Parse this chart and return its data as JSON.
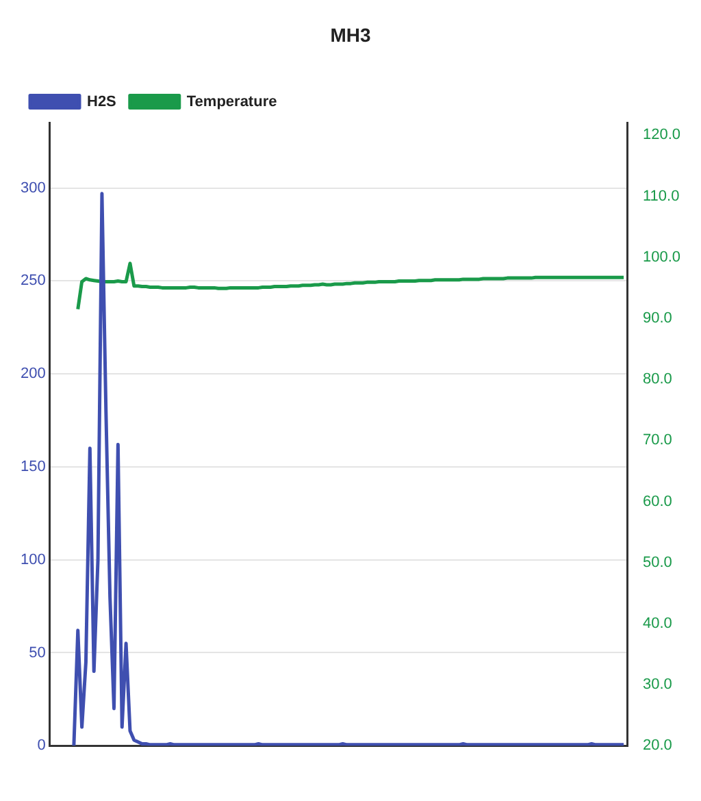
{
  "chart_data": {
    "type": "line",
    "title": "MH3",
    "categories": [
      null,
      null,
      null,
      null,
      null,
      null,
      null,
      null,
      null,
      null,
      null,
      null,
      null,
      null,
      null,
      null,
      null,
      null,
      null,
      null,
      null,
      null,
      null,
      null,
      null,
      null,
      null,
      null,
      null,
      null,
      null,
      null,
      null,
      null,
      null,
      null,
      null,
      null,
      null,
      null,
      null,
      null,
      null,
      null,
      null,
      null,
      null,
      null,
      null,
      null,
      null,
      null,
      null,
      null,
      null,
      null,
      null,
      null,
      null,
      null,
      null,
      null,
      null,
      null,
      null,
      null,
      null,
      null,
      null,
      null,
      null,
      null,
      null,
      null,
      null,
      null,
      null,
      null,
      null,
      null,
      null,
      null,
      null,
      null,
      null,
      null,
      null,
      null,
      null,
      null,
      null,
      null,
      null,
      null,
      null,
      null,
      null,
      null,
      null,
      null,
      null,
      null,
      null,
      null,
      null,
      null,
      null,
      null,
      null,
      null,
      null,
      null,
      null,
      null,
      null,
      null,
      null,
      null,
      null,
      null,
      null,
      null,
      null,
      null,
      null,
      null,
      null,
      null,
      null,
      null,
      null,
      null,
      null,
      null,
      null,
      null,
      null,
      null,
      null,
      null,
      null,
      null,
      null,
      null,
      null
    ],
    "series": [
      {
        "name": "H2S",
        "color": "#3f4fb0",
        "type": "line",
        "axis": "y",
        "values": [
          null,
          null,
          null,
          null,
          null,
          null,
          0,
          62,
          10,
          45,
          160,
          40,
          100,
          297,
          180,
          80,
          20,
          162,
          10,
          55,
          8,
          3,
          2,
          1,
          1,
          0.5,
          0.5,
          0.5,
          0.5,
          0.5,
          1,
          0.5,
          0.5,
          0.5,
          0.5,
          0.5,
          0.5,
          0.5,
          0.5,
          0.5,
          0.5,
          0.5,
          0.5,
          0.5,
          0.5,
          0.5,
          0.5,
          0.5,
          0.5,
          0.5,
          0.5,
          0.5,
          1,
          0.5,
          0.5,
          0.5,
          0.5,
          0.5,
          0.5,
          0.5,
          0.5,
          0.5,
          0.5,
          0.5,
          0.5,
          0.5,
          0.5,
          0.5,
          0.5,
          0.5,
          0.5,
          0.5,
          0.5,
          1,
          0.5,
          0.5,
          0.5,
          0.5,
          0.5,
          0.5,
          0.5,
          0.5,
          0.5,
          0.5,
          0.5,
          0.5,
          0.5,
          0.5,
          0.5,
          0.5,
          0.5,
          0.5,
          0.5,
          0.5,
          0.5,
          0.5,
          0.5,
          0.5,
          0.5,
          0.5,
          0.5,
          0.5,
          0.5,
          1,
          0.5,
          0.5,
          0.5,
          0.5,
          0.5,
          0.5,
          0.5,
          0.5,
          0.5,
          0.5,
          0.5,
          0.5,
          0.5,
          0.5,
          0.5,
          0.5,
          0.5,
          0.5,
          0.5,
          0.5,
          0.5,
          0.5,
          0.5,
          0.5,
          0.5,
          0.5,
          0.5,
          0.5,
          0.5,
          0.5,
          0.5,
          1,
          0.5,
          0.5,
          0.5,
          0.5,
          0.5,
          0.5,
          0.5,
          0.5,
          null
        ]
      },
      {
        "name": "Temperature",
        "color": "#1a9a4a",
        "type": "line",
        "axis": "y2",
        "values": [
          null,
          null,
          null,
          null,
          null,
          null,
          null,
          91.5,
          96,
          96.5,
          96.3,
          96.2,
          96.1,
          96,
          96,
          96,
          96,
          96.1,
          96,
          96,
          99,
          95.3,
          95.3,
          95.2,
          95.2,
          95.1,
          95.1,
          95.1,
          95,
          95,
          95,
          95,
          95,
          95,
          95,
          95.1,
          95.1,
          95,
          95,
          95,
          95,
          95,
          94.9,
          94.9,
          94.9,
          95,
          95,
          95,
          95,
          95,
          95,
          95,
          95,
          95.1,
          95.1,
          95.1,
          95.2,
          95.2,
          95.2,
          95.2,
          95.3,
          95.3,
          95.3,
          95.4,
          95.4,
          95.4,
          95.5,
          95.5,
          95.6,
          95.5,
          95.5,
          95.6,
          95.6,
          95.6,
          95.7,
          95.7,
          95.8,
          95.8,
          95.8,
          95.9,
          95.9,
          95.9,
          96,
          96,
          96,
          96,
          96,
          96.1,
          96.1,
          96.1,
          96.1,
          96.1,
          96.2,
          96.2,
          96.2,
          96.2,
          96.3,
          96.3,
          96.3,
          96.3,
          96.3,
          96.3,
          96.3,
          96.4,
          96.4,
          96.4,
          96.4,
          96.4,
          96.5,
          96.5,
          96.5,
          96.5,
          96.5,
          96.5,
          96.6,
          96.6,
          96.6,
          96.6,
          96.6,
          96.6,
          96.6,
          96.7,
          96.7,
          96.7,
          96.7,
          96.7,
          96.7,
          96.7,
          96.7,
          96.7,
          96.7,
          96.7,
          96.7,
          96.7,
          96.7,
          96.7,
          96.7,
          96.7,
          96.7,
          96.7,
          96.7,
          96.7,
          96.7,
          96.7,
          null
        ]
      }
    ],
    "ylim": [
      0,
      335
    ],
    "yticks": [
      0,
      50,
      100,
      150,
      200,
      250,
      300
    ],
    "y2lim": [
      20,
      122
    ],
    "y2ticks": [
      {
        "value": 20,
        "label": "20.0"
      },
      {
        "value": 30,
        "label": "30.0"
      },
      {
        "value": 40,
        "label": "40.0"
      },
      {
        "value": 50,
        "label": "50.0"
      },
      {
        "value": 60,
        "label": "60.0"
      },
      {
        "value": 70,
        "label": "70.0"
      },
      {
        "value": 80,
        "label": "80.0"
      },
      {
        "value": 90,
        "label": "90.0"
      },
      {
        "value": 100,
        "label": "100.0"
      },
      {
        "value": 110,
        "label": "110.0"
      },
      {
        "value": 120,
        "label": "120.0"
      }
    ],
    "grid": "y",
    "legend": "top left",
    "marker": "none",
    "line_style": "solid"
  }
}
